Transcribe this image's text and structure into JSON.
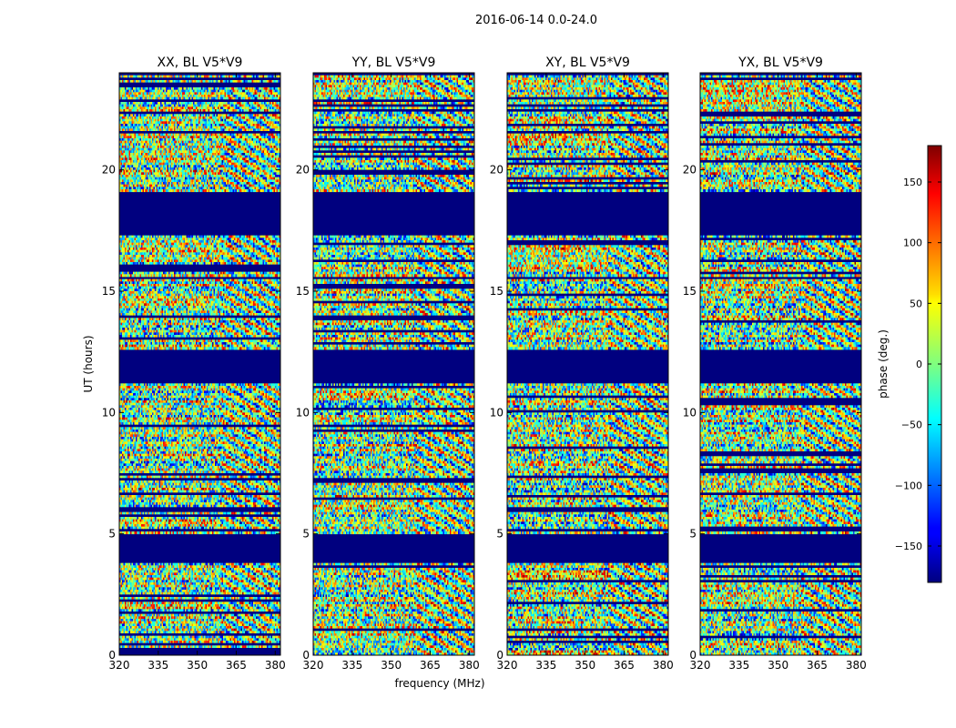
{
  "suptitle": "2016-06-14 0.0-24.0",
  "chart_data": {
    "type": "heatmap",
    "title": "2016-06-14 0.0-24.0",
    "xlabel": "frequency (MHz)",
    "ylabel": "UT (hours)",
    "xlim": [
      320,
      382
    ],
    "ylim": [
      0,
      24
    ],
    "xticks": [
      320,
      335,
      350,
      365,
      380
    ],
    "yticks": [
      0,
      5,
      10,
      15,
      20
    ],
    "panels": [
      {
        "title": "XX, BL V5*V9",
        "pol": "XX"
      },
      {
        "title": "YY, BL V5*V9",
        "pol": "YY"
      },
      {
        "title": "XY, BL V5*V9",
        "pol": "XY"
      },
      {
        "title": "YX, BL V5*V9",
        "pol": "YX"
      }
    ],
    "colorbar": {
      "label": "phase (deg.)",
      "range": [
        -180,
        180
      ],
      "ticks": [
        -150,
        -100,
        -50,
        0,
        50,
        100,
        150
      ],
      "colormap": "jet"
    },
    "flagged_ut_bands": [
      [
        0.0,
        0.05
      ],
      [
        3.85,
        5.0
      ],
      [
        11.2,
        12.6
      ],
      [
        15.55,
        15.65
      ],
      [
        17.3,
        19.1
      ],
      [
        23.95,
        24.0
      ]
    ]
  }
}
